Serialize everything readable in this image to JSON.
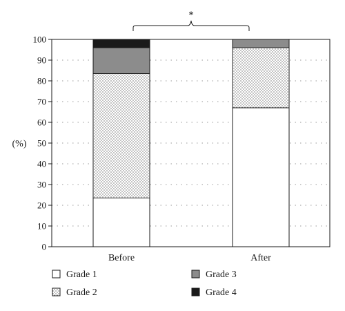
{
  "chart_data": {
    "type": "bar",
    "stacked": true,
    "categories": [
      "Before",
      "After"
    ],
    "series": [
      {
        "name": "Grade 1",
        "values": [
          23.5,
          67
        ],
        "color": "#ffffff",
        "pattern": "none"
      },
      {
        "name": "Grade 2",
        "values": [
          60,
          29
        ],
        "color": "#ffffff",
        "pattern": "dots"
      },
      {
        "name": "Grade 3",
        "values": [
          12.5,
          4
        ],
        "color": "#8c8c8c",
        "pattern": "none"
      },
      {
        "name": "Grade 4",
        "values": [
          4,
          0
        ],
        "color": "#1a1a1a",
        "pattern": "none"
      }
    ],
    "ylabel": "(%)",
    "ylim": [
      0,
      100
    ],
    "yticks": [
      0,
      10,
      20,
      30,
      40,
      50,
      60,
      70,
      80,
      90,
      100
    ],
    "grid": "dotted-horizontal",
    "legend_position": "bottom",
    "annotation": {
      "text": "*",
      "type": "significance-bracket",
      "between": [
        "Before",
        "After"
      ]
    }
  }
}
